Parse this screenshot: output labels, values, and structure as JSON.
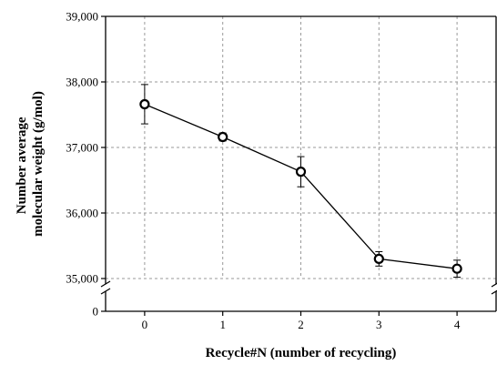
{
  "chart_data": {
    "type": "line",
    "title": "",
    "xlabel": "Recycle#N (number of recycling)",
    "ylabel_lines": [
      "Number average",
      "molecular weight (g/mol)"
    ],
    "x": [
      0,
      1,
      2,
      3,
      4
    ],
    "x_tick_labels": [
      "0",
      "1",
      "2",
      "3",
      "4"
    ],
    "xlim": [
      -0.5,
      4.5
    ],
    "y_axis_break": true,
    "upper_ylim": [
      35000,
      39000
    ],
    "lower_ylim": [
      0,
      1000
    ],
    "y_tick_labels_upper": [
      "35,000",
      "36,000",
      "37,000",
      "38,000",
      "39,000"
    ],
    "y_tick_values_upper": [
      35000,
      36000,
      37000,
      38000,
      39000
    ],
    "y_tick_labels_lower": [
      "0"
    ],
    "y_tick_values_lower": [
      0
    ],
    "grid": true,
    "series": [
      {
        "values": [
          37660,
          37160,
          36630,
          35300,
          35150
        ],
        "error": [
          300,
          60,
          230,
          110,
          130
        ],
        "marker": "open-circle",
        "color": "#000000"
      }
    ]
  }
}
